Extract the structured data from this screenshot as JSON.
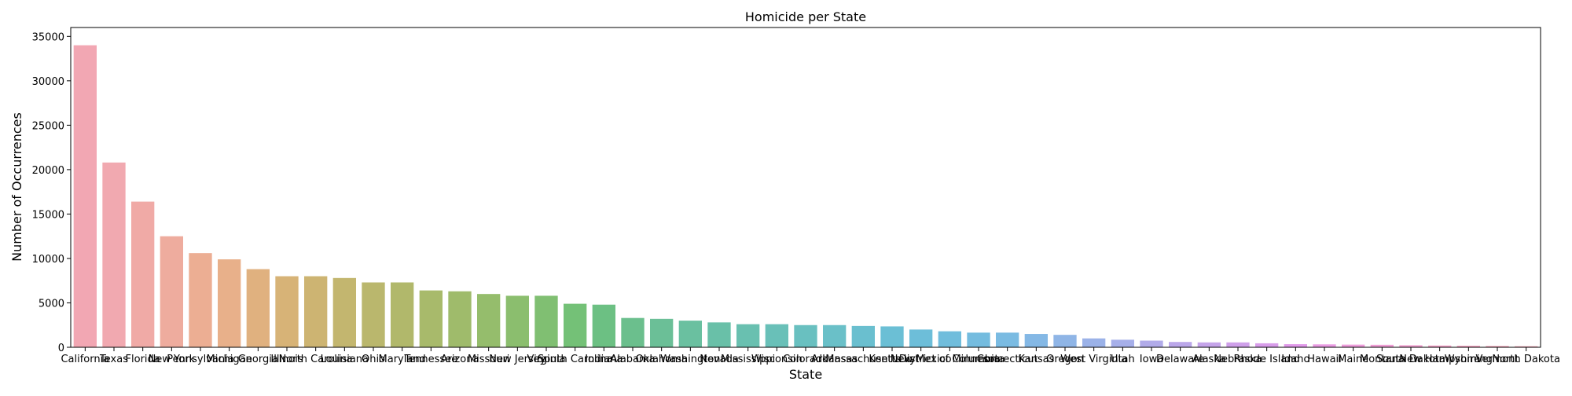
{
  "chart_data": {
    "type": "bar",
    "title": "Homicide per State",
    "xlabel": "State",
    "ylabel": "Number of Occurrences",
    "ylim": [
      0,
      36000
    ],
    "yticks": [
      0,
      5000,
      10000,
      15000,
      20000,
      25000,
      30000,
      35000
    ],
    "grid": false,
    "legend": "none",
    "categories": [
      "California",
      "Texas",
      "Florida",
      "New York",
      "Pennsylvania",
      "Michigan",
      "Georgia",
      "Illinois",
      "North Carolina",
      "Louisiana",
      "Ohio",
      "Maryland",
      "Tennessee",
      "Arizona",
      "Missouri",
      "New Jersey",
      "Virginia",
      "South Carolina",
      "Indiana",
      "Alabama",
      "Oklahoma",
      "Washington",
      "Nevada",
      "Mississippi",
      "Wisconsin",
      "Colorado",
      "Arkansas",
      "Massachusetts",
      "Kentucky",
      "New Mexico",
      "District of Columbia",
      "Minnesota",
      "Connecticut",
      "Kansas",
      "Oregon",
      "West Virginia",
      "Utah",
      "Iowa",
      "Delaware",
      "Alaska",
      "Nebraska",
      "Rhode Island",
      "Idaho",
      "Hawaii",
      "Maine",
      "Montana",
      "South Dakota",
      "New Hampshire",
      "Wyoming",
      "Vermont",
      "North Dakota"
    ],
    "values": [
      34000,
      20800,
      16400,
      12500,
      10600,
      9900,
      8800,
      8000,
      8000,
      7800,
      7300,
      7300,
      6400,
      6300,
      6000,
      5800,
      5800,
      4900,
      4800,
      3300,
      3200,
      3000,
      2800,
      2600,
      2600,
      2500,
      2500,
      2400,
      2350,
      2000,
      1800,
      1650,
      1650,
      1500,
      1400,
      1000,
      850,
      750,
      600,
      550,
      550,
      450,
      350,
      330,
      300,
      280,
      230,
      200,
      180,
      150,
      120
    ],
    "colors": [
      "#f2a7b3",
      "#f1a9b0",
      "#f0aaa6",
      "#eeac9e",
      "#ecae93",
      "#e8b08a",
      "#e0b17f",
      "#d7b377",
      "#cdb472",
      "#c3b66f",
      "#bab76d",
      "#b1b86b",
      "#a8ba6b",
      "#9fbb6b",
      "#95bd6c",
      "#8bbe6e",
      "#80bf72",
      "#74c177",
      "#6cc083",
      "#6bbf8d",
      "#6bbf97",
      "#6ac0a0",
      "#69c0a8",
      "#69c0b0",
      "#69c0b8",
      "#69c0c0",
      "#6ac0c8",
      "#6abfcf",
      "#6bbfd5",
      "#6dbed9",
      "#70bddc",
      "#74bcdf",
      "#7abbe2",
      "#84b8e5",
      "#8fb5e6",
      "#9bb2e8",
      "#a6afe9",
      "#b1abe9",
      "#bba7ea",
      "#c5a4ea",
      "#cfa0ea",
      "#d89dea",
      "#e19aea",
      "#e99be2",
      "#ee9ddb",
      "#f09ed5",
      "#f1a0cf",
      "#f2a2c8",
      "#f2a3c1",
      "#f2a5ba",
      "#f2a6b6"
    ]
  }
}
